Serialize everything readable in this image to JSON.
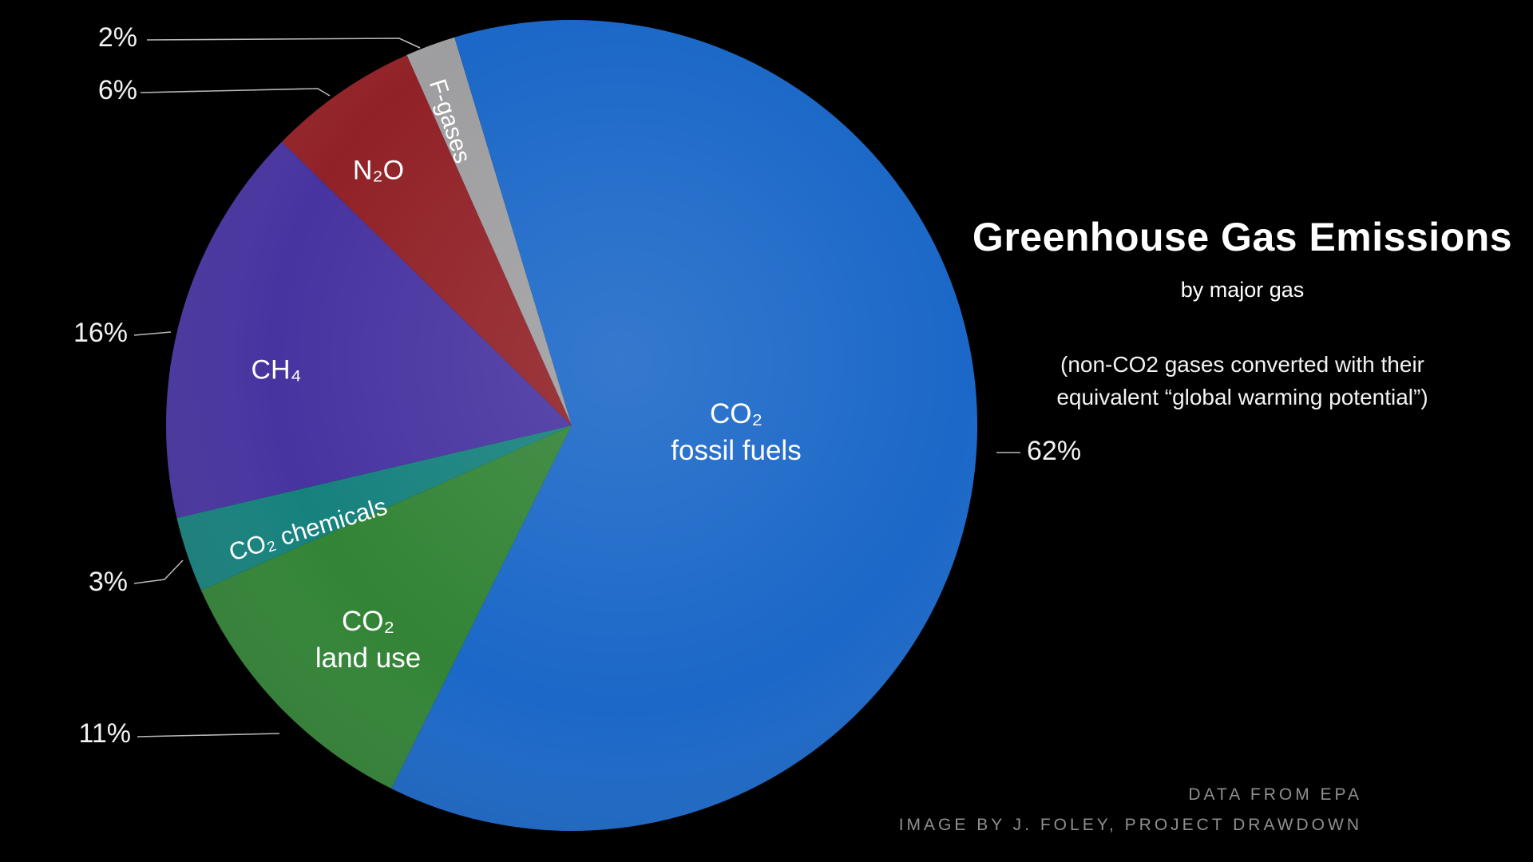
{
  "chart_data": {
    "type": "pie",
    "title": "Greenhouse Gas Emissions",
    "subtitle": "by major gas",
    "note_lines": [
      "(non-CO2 gases converted with their",
      "equivalent “global warming potential”)"
    ],
    "value_unit": "percent",
    "start_angle_deg": -24,
    "direction": "clockwise",
    "legend_position": "labels-inside-slices-with-outside-percent-callouts",
    "slices": [
      {
        "label": "F-gases",
        "value": 2,
        "pct_label": "2%",
        "color": "#9b9b9d"
      },
      {
        "label": "CO₂ fossil fuels",
        "label_lines": [
          "CO₂",
          "fossil fuels"
        ],
        "value": 62,
        "pct_label": "62%",
        "color": "#1463c6"
      },
      {
        "label": "CO₂ land use",
        "label_lines": [
          "CO₂",
          "land use"
        ],
        "value": 11,
        "pct_label": "11%",
        "color": "#2c8030"
      },
      {
        "label": "CO₂ chemicals",
        "value": 3,
        "pct_label": "3%",
        "color": "#0f7d79"
      },
      {
        "label": "CH₄",
        "value": 16,
        "pct_label": "16%",
        "color": "#422d9d"
      },
      {
        "label": "N₂O",
        "value": 6,
        "pct_label": "6%",
        "color": "#8d1a20"
      }
    ],
    "credits": [
      "DATA FROM EPA",
      "IMAGE BY J. FOLEY, PROJECT DRAWDOWN"
    ]
  }
}
